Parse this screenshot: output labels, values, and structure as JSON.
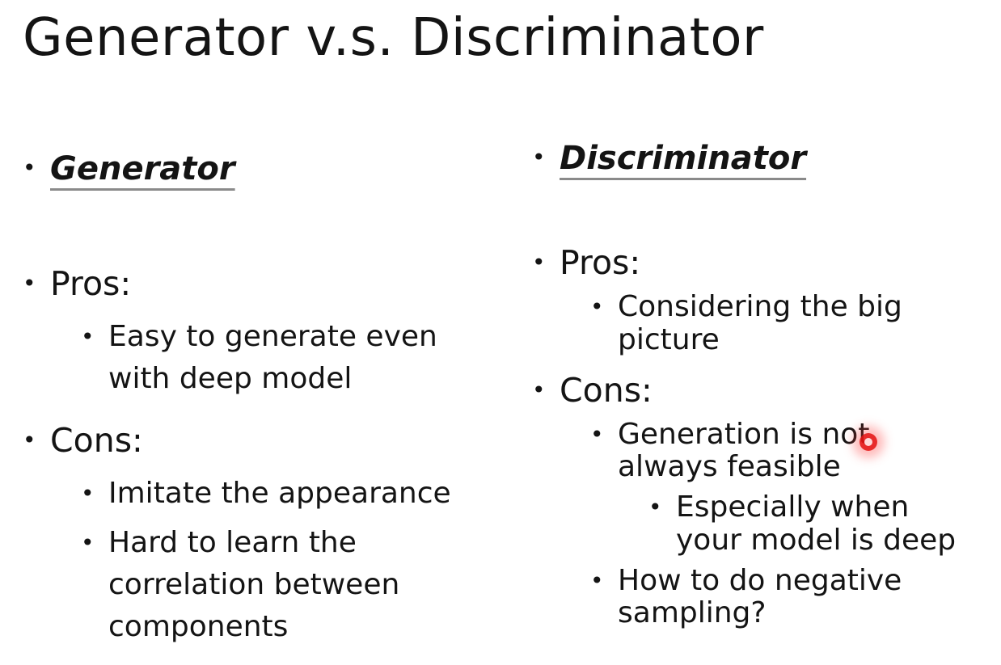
{
  "title": "Generator v.s. Discriminator",
  "generator": {
    "heading": "Generator",
    "pros_label": "Pros:",
    "pros": [
      [
        "Easy to generate even",
        "with deep model"
      ]
    ],
    "cons_label": "Cons:",
    "cons": [
      [
        "Imitate the appearance"
      ],
      [
        "Hard to learn the",
        "correlation between",
        "components"
      ]
    ]
  },
  "discriminator": {
    "heading": "Discriminator",
    "pros_label": "Pros:",
    "pros": [
      [
        "Considering the big",
        "picture"
      ]
    ],
    "cons_label": "Cons:",
    "cons": [
      [
        "Generation is not",
        "always feasible"
      ],
      [
        "How to do negative",
        "sampling?"
      ]
    ],
    "cons_sub": [
      [
        "Especially when",
        "your model is deep"
      ]
    ]
  },
  "bullet_glyph": "•"
}
